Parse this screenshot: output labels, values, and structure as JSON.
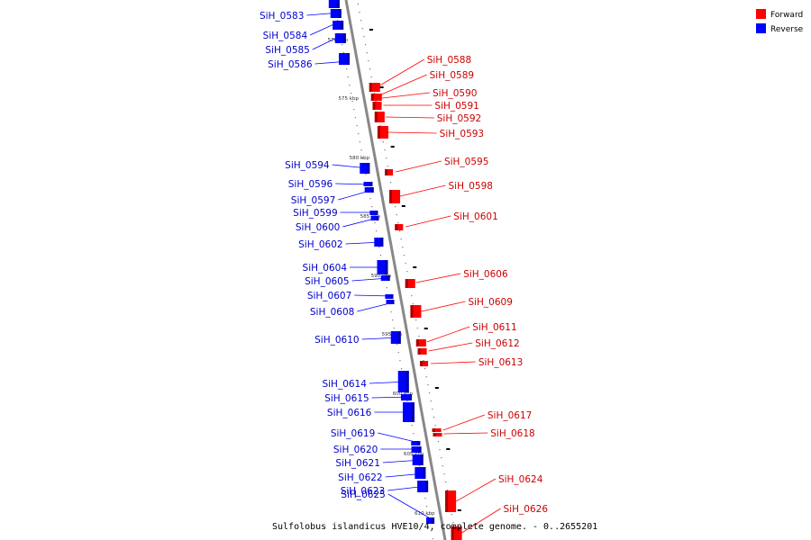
{
  "caption": "Sulfolobus islandicus HVE10/4, complete genome. - 0..2655201",
  "legend": [
    {
      "label": "Forward",
      "color": "#ff0000"
    },
    {
      "label": "Reverse",
      "color": "#0000ff"
    }
  ],
  "colors": {
    "forward": "#ff0000",
    "reverse": "#0000ff",
    "axis": "#888888"
  },
  "ticks": [
    "570 kbp",
    "575 kbp",
    "580 kbp",
    "585 kbp",
    "590 kbp",
    "595 kbp",
    "600 kbp",
    "605 kbp",
    "610 kbp"
  ],
  "genes_reverse": [
    "SiH_0583",
    "SiH_0584",
    "SiH_0585",
    "SiH_0586",
    "SiH_0594",
    "SiH_0596",
    "SiH_0597",
    "SiH_0599",
    "SiH_0600",
    "SiH_0602",
    "SiH_0604",
    "SiH_0605",
    "SiH_0607",
    "SiH_0608",
    "SiH_0610",
    "SiH_0614",
    "SiH_0615",
    "SiH_0616",
    "SiH_0619",
    "SiH_0620",
    "SiH_0621",
    "SiH_0622",
    "SiH_0623",
    "SiH_0625"
  ],
  "genes_forward": [
    "SiH_0588",
    "SiH_0589",
    "SiH_0590",
    "SiH_0591",
    "SiH_0592",
    "SiH_0593",
    "SiH_0595",
    "SiH_0598",
    "SiH_0601",
    "SiH_0606",
    "SiH_0609",
    "SiH_0611",
    "SiH_0612",
    "SiH_0613",
    "SiH_0617",
    "SiH_0618",
    "SiH_0624",
    "SiH_0626"
  ]
}
